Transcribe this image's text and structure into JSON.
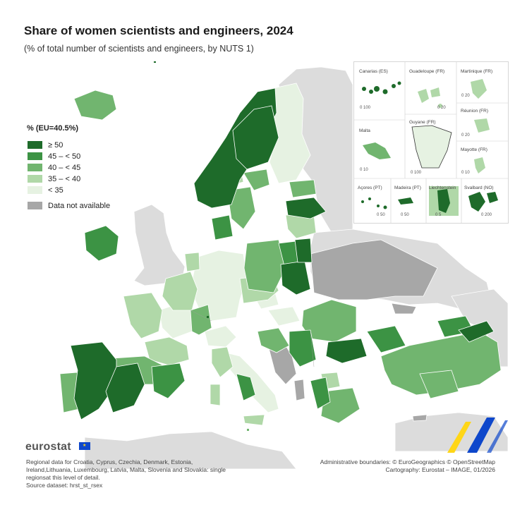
{
  "title": "Share of women scientists and engineers, 2024",
  "subtitle": "(% of total number of scientists and engineers, by NUTS 1)",
  "legend": {
    "title": "% (EU=40.5%)",
    "classes": [
      {
        "label": "≥ 50",
        "color": "#1e6b2a"
      },
      {
        "label": "45 – < 50",
        "color": "#3c9344"
      },
      {
        "label": "40 – < 45",
        "color": "#71b56f"
      },
      {
        "label": "35 – < 40",
        "color": "#b0d8a8"
      },
      {
        "label": "< 35",
        "color": "#e6f2e2"
      }
    ],
    "na_label": "Data not available",
    "na_color": "#a7a7a7"
  },
  "insets": {
    "canarias": {
      "label": "Canarias (ES)",
      "scale": "0   100"
    },
    "guadeloupe": {
      "label": "Guadeloupe (FR)",
      "scale": "0   20"
    },
    "martinique": {
      "label": "Martinique (FR)",
      "scale": "0   20"
    },
    "reunion": {
      "label": "Réunion (FR)",
      "scale": "0   20"
    },
    "malta": {
      "label": "Malta",
      "scale": "0   10"
    },
    "guyane": {
      "label": "Guyane (FR)",
      "scale": "0   100"
    },
    "mayotte": {
      "label": "Mayotte (FR)",
      "scale": "0 10"
    },
    "acores": {
      "label": "Açores (PT)",
      "scale": "0   50"
    },
    "madeira": {
      "label": "Madeira (PT)",
      "scale": "0   50"
    },
    "liechtenstein": {
      "label": "Liechtenstein",
      "scale": "0   5"
    },
    "svalbard": {
      "label": "Svalbard (NO)",
      "scale": "0   200"
    }
  },
  "footer": {
    "brand": "eurostat",
    "note_lines": [
      "Regional data for Croatia, Cyprus, Czechia, Denmark, Estonia,",
      "Ireland,Lithuania, Luxembourg, Latvia, Malta, Slovenia and Slovakia: single",
      "regionsat this level of detail.",
      "Source dataset: hrst_st_rsex"
    ],
    "credit_lines": [
      "Administrative boundaries: © EuroGeographics © OpenStreetMap",
      "Cartography: Eurostat – IMAGE, 01/2026"
    ]
  },
  "colors": {
    "sea": "#ffffff",
    "non_eu": "#dcdcdc",
    "no_data": "#a7a7a7"
  }
}
